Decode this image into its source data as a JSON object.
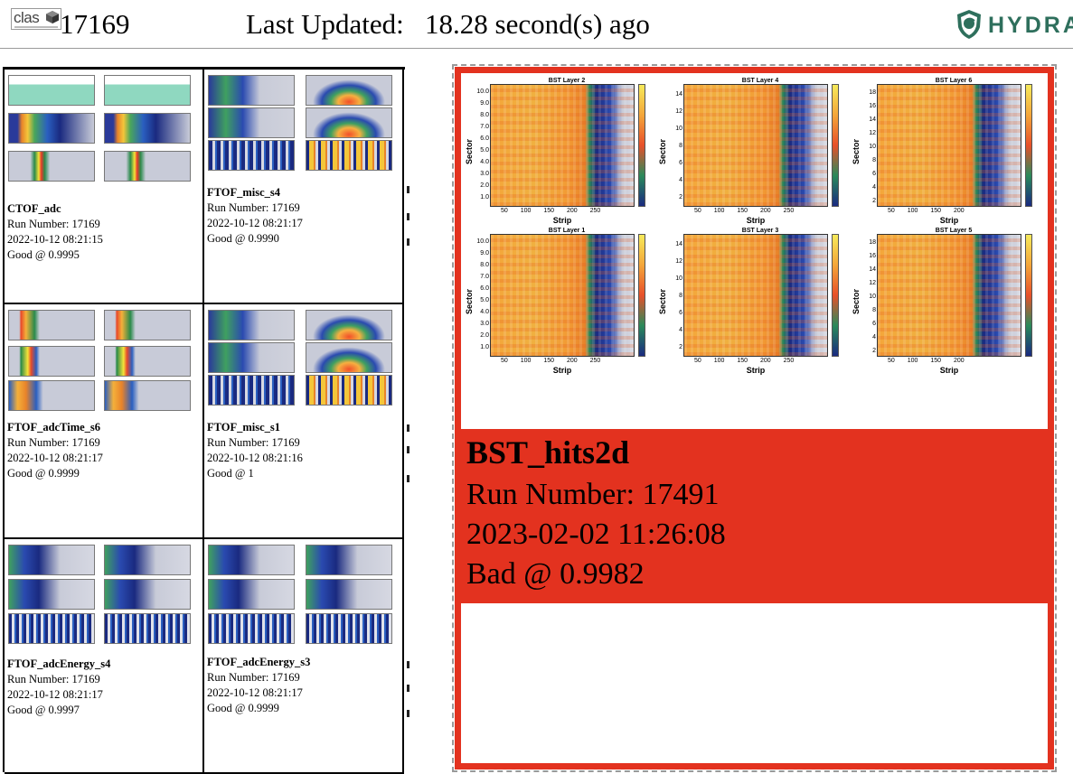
{
  "header": {
    "logo_text": "clas",
    "run_number": "17169",
    "last_updated_label": "Last Updated:",
    "last_updated_value": "18.28 second(s) ago",
    "brand": "HYDRA"
  },
  "thumbnails": [
    {
      "title": "CTOF_adc",
      "run": "Run Number: 17169",
      "time": "2022-10-12 08:21:15",
      "status": "Good @ 0.9995"
    },
    {
      "title": "FTOF_misc_s4",
      "run": "Run Number: 17169",
      "time": "2022-10-12 08:21:17",
      "status": "Good @ 0.9990"
    },
    {
      "title": "FTOF_adcTime_s6",
      "run": "Run Number: 17169",
      "time": "2022-10-12 08:21:17",
      "status": "Good @ 0.9999"
    },
    {
      "title": "FTOF_misc_s1",
      "run": "Run Number: 17169",
      "time": "2022-10-12 08:21:16",
      "status": "Good @ 1"
    },
    {
      "title": "FTOF_adcEnergy_s4",
      "run": "Run Number: 17169",
      "time": "2022-10-12 08:21:17",
      "status": "Good @ 0.9997"
    },
    {
      "title": "FTOF_adcEnergy_s3",
      "run": "Run Number: 17169",
      "time": "2022-10-12 08:21:17",
      "status": "Good @ 0.9999"
    }
  ],
  "featured": {
    "title": "BST_hits2d",
    "run": "Run Number: 17491",
    "time": "2023-02-02 11:26:08",
    "status": "Bad @ 0.9982",
    "status_color": "#e3321f",
    "plots": [
      {
        "title": "BST Layer 2",
        "ylabel": "Sector",
        "xlabel": "Strip",
        "yticks": [
          "10.0",
          "9.0",
          "8.0",
          "7.0",
          "6.0",
          "5.0",
          "4.0",
          "3.0",
          "2.0",
          "1.0"
        ],
        "xticks": "50 100 150 200 250"
      },
      {
        "title": "BST Layer 4",
        "ylabel": "Sector",
        "xlabel": "Strip",
        "yticks": [
          "14",
          "12",
          "10",
          "8",
          "6",
          "4",
          "2"
        ],
        "xticks": "50 100 150 200 250"
      },
      {
        "title": "BST Layer 6",
        "ylabel": "Sector",
        "xlabel": "Strip",
        "yticks": [
          "18",
          "16",
          "14",
          "12",
          "10",
          "8",
          "6",
          "4",
          "2"
        ],
        "xticks": "50 100 150 200"
      },
      {
        "title": "BST Layer 1",
        "ylabel": "Sector",
        "xlabel": "Strip",
        "yticks": [
          "10.0",
          "9.0",
          "8.0",
          "7.0",
          "6.0",
          "5.0",
          "4.0",
          "3.0",
          "2.0",
          "1.0"
        ],
        "xticks": "50 100 150 200 250"
      },
      {
        "title": "BST Layer 3",
        "ylabel": "Sector",
        "xlabel": "Strip",
        "yticks": [
          "14",
          "12",
          "10",
          "8",
          "6",
          "4",
          "2"
        ],
        "xticks": "50 100 150 200 250"
      },
      {
        "title": "BST Layer 5",
        "ylabel": "Sector",
        "xlabel": "Strip",
        "yticks": [
          "18",
          "16",
          "14",
          "12",
          "10",
          "8",
          "6",
          "4",
          "2"
        ],
        "xticks": "50 100 150 200"
      }
    ]
  }
}
